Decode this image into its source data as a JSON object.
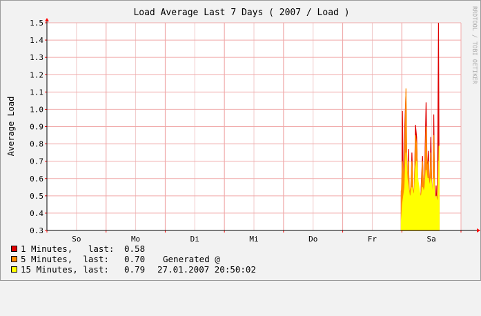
{
  "chart_data": {
    "type": "area",
    "title": "Load Average Last 7 Days ( 2007 / Load )",
    "ylabel": "Average Load",
    "xlabel": "",
    "ylim": [
      0.3,
      1.5
    ],
    "yticks": [
      "0.3",
      "0.4",
      "0.5",
      "0.6",
      "0.7",
      "0.8",
      "0.9",
      "1.0",
      "1.1",
      "1.2",
      "1.3",
      "1.4",
      "1.5"
    ],
    "xlim": [
      0,
      7
    ],
    "categories": [
      "So",
      "Mo",
      "Di",
      "Mi",
      "Do",
      "Fr",
      "Sa"
    ],
    "grid": true,
    "watermark": "RRDTOOL / TOBI OETIKER",
    "series": [
      {
        "name": "1 Minutes",
        "color": "#e00000",
        "values": [
          [
            5.99,
            0.53
          ],
          [
            6.0,
            0.46
          ],
          [
            6.01,
            0.99
          ],
          [
            6.03,
            0.42
          ],
          [
            6.05,
            0.9
          ],
          [
            6.07,
            1.1
          ],
          [
            6.09,
            0.4
          ],
          [
            6.11,
            0.77
          ],
          [
            6.13,
            0.42
          ],
          [
            6.15,
            0.45
          ],
          [
            6.17,
            0.75
          ],
          [
            6.19,
            0.52
          ],
          [
            6.21,
            0.45
          ],
          [
            6.23,
            0.91
          ],
          [
            6.25,
            0.84
          ],
          [
            6.27,
            0.55
          ],
          [
            6.29,
            0.42
          ],
          [
            6.31,
            0.4
          ],
          [
            6.33,
            0.58
          ],
          [
            6.35,
            0.73
          ],
          [
            6.37,
            0.45
          ],
          [
            6.39,
            0.7
          ],
          [
            6.41,
            1.04
          ],
          [
            6.43,
            0.6
          ],
          [
            6.45,
            0.76
          ],
          [
            6.47,
            0.45
          ],
          [
            6.49,
            0.84
          ],
          [
            6.51,
            0.45
          ],
          [
            6.52,
            0.35
          ],
          [
            6.54,
            0.97
          ],
          [
            6.56,
            0.32
          ],
          [
            6.58,
            0.56
          ],
          [
            6.6,
            0.36
          ],
          [
            6.62,
            1.5
          ],
          [
            6.63,
            0.58
          ]
        ]
      },
      {
        "name": "5 Minutes",
        "color": "#ff8c00",
        "values": [
          [
            5.99,
            0.5
          ],
          [
            6.01,
            0.7
          ],
          [
            6.03,
            0.58
          ],
          [
            6.05,
            0.75
          ],
          [
            6.07,
            1.12
          ],
          [
            6.09,
            0.55
          ],
          [
            6.11,
            0.7
          ],
          [
            6.13,
            0.5
          ],
          [
            6.15,
            0.55
          ],
          [
            6.17,
            0.7
          ],
          [
            6.19,
            0.55
          ],
          [
            6.21,
            0.5
          ],
          [
            6.23,
            0.85
          ],
          [
            6.25,
            0.8
          ],
          [
            6.27,
            0.6
          ],
          [
            6.29,
            0.5
          ],
          [
            6.31,
            0.45
          ],
          [
            6.33,
            0.55
          ],
          [
            6.35,
            0.7
          ],
          [
            6.37,
            0.5
          ],
          [
            6.39,
            0.65
          ],
          [
            6.41,
            0.9
          ],
          [
            6.43,
            0.65
          ],
          [
            6.45,
            0.7
          ],
          [
            6.47,
            0.5
          ],
          [
            6.49,
            0.75
          ],
          [
            6.51,
            0.5
          ],
          [
            6.52,
            0.4
          ],
          [
            6.54,
            0.85
          ],
          [
            6.56,
            0.38
          ],
          [
            6.58,
            0.5
          ],
          [
            6.6,
            0.4
          ],
          [
            6.62,
            0.7
          ],
          [
            6.63,
            0.7
          ]
        ]
      },
      {
        "name": "15 Minutes",
        "color": "#ffff00",
        "values": [
          [
            5.99,
            0.35
          ],
          [
            6.01,
            0.45
          ],
          [
            6.03,
            0.5
          ],
          [
            6.05,
            0.55
          ],
          [
            6.07,
            0.75
          ],
          [
            6.09,
            0.6
          ],
          [
            6.11,
            0.55
          ],
          [
            6.13,
            0.5
          ],
          [
            6.15,
            0.5
          ],
          [
            6.17,
            0.55
          ],
          [
            6.19,
            0.52
          ],
          [
            6.21,
            0.5
          ],
          [
            6.23,
            0.65
          ],
          [
            6.25,
            0.7
          ],
          [
            6.27,
            0.6
          ],
          [
            6.29,
            0.55
          ],
          [
            6.31,
            0.5
          ],
          [
            6.33,
            0.5
          ],
          [
            6.35,
            0.55
          ],
          [
            6.37,
            0.52
          ],
          [
            6.39,
            0.55
          ],
          [
            6.41,
            0.65
          ],
          [
            6.43,
            0.6
          ],
          [
            6.45,
            0.6
          ],
          [
            6.47,
            0.55
          ],
          [
            6.49,
            0.6
          ],
          [
            6.51,
            0.55
          ],
          [
            6.52,
            0.5
          ],
          [
            6.54,
            0.6
          ],
          [
            6.56,
            0.45
          ],
          [
            6.58,
            0.5
          ],
          [
            6.6,
            0.45
          ],
          [
            6.62,
            0.55
          ],
          [
            6.63,
            0.79
          ]
        ]
      }
    ]
  },
  "legend": {
    "rows": [
      {
        "label": "1 Minutes,   last:",
        "value": "0.58",
        "color": "#e00000"
      },
      {
        "label": "5 Minutes,  last:",
        "value": "0.70",
        "color": "#ff8c00"
      },
      {
        "label": "15 Minutes, last:",
        "value": "0.79",
        "color": "#ffff00"
      }
    ],
    "generated_label": "Generated @",
    "generated_date": "27.01.2007 20:50:02"
  }
}
